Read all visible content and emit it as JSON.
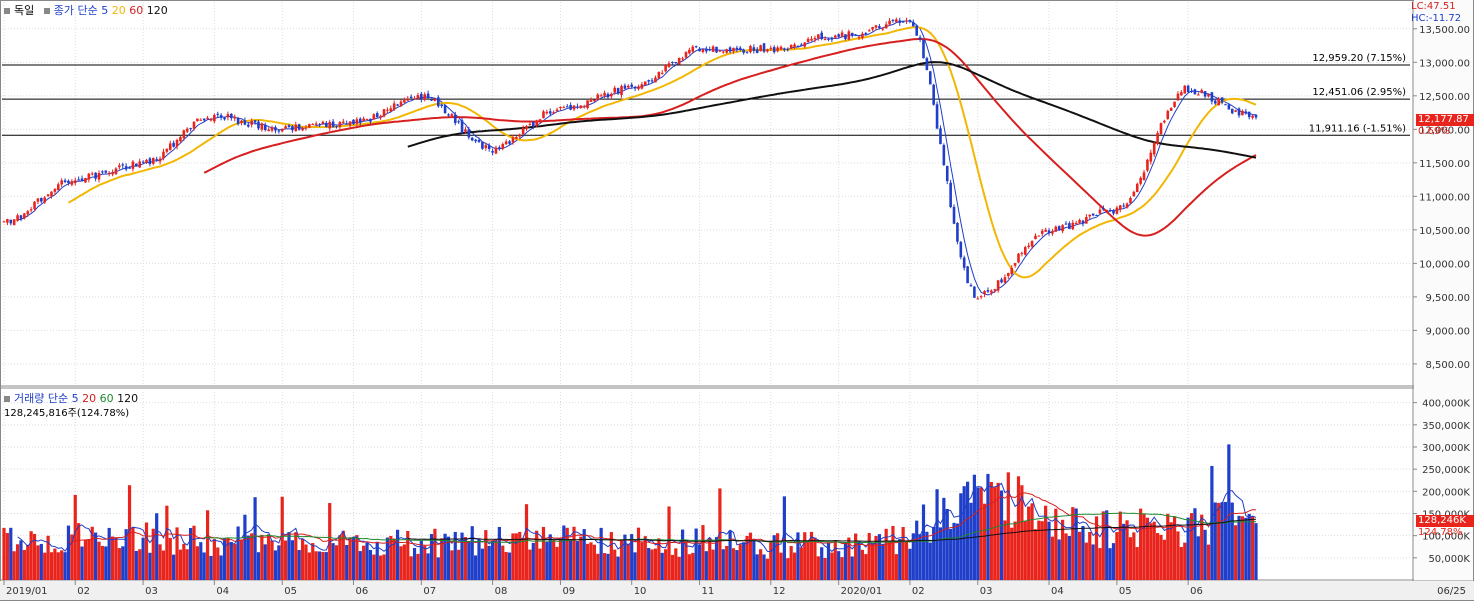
{
  "header": {
    "index_name": "독일",
    "close_label": "종가",
    "sma_label": "단순",
    "ma5": "5",
    "ma20": "20",
    "ma60": "60",
    "ma120": "120",
    "lc": "LC:47.51",
    "hc": "HC:-11.72"
  },
  "volume_header": {
    "title": "거래량",
    "sma_label": "단순",
    "ma5": "5",
    "ma20": "20",
    "ma60": "60",
    "ma120": "120",
    "value": "128,245,816주(124.78%)"
  },
  "colors": {
    "up": "#e8241d",
    "down": "#1f3ec9",
    "ma5": "#1f3ec9",
    "ma20": "#f2b705",
    "ma60": "#d71f1f",
    "ma120": "#111111",
    "vol_ma5": "#1f3ec9",
    "vol_ma20": "#d71f1f",
    "vol_ma60": "#1e8a2e",
    "vol_ma120": "#111111"
  },
  "price_axis_labels": [
    "13,500.00",
    "13,000.00",
    "12,500.00",
    "12,000.00",
    "11,500.00",
    "11,000.00",
    "10,500.00",
    "10,000.00",
    "9,500.00",
    "9,000.00",
    "8,500.00"
  ],
  "volume_axis_labels": [
    "400,000K",
    "350,000K",
    "300,000K",
    "250,000K",
    "200,000K",
    "150,000K",
    "100,000K",
    "50,000K"
  ],
  "x_labels": [
    "2019/01",
    "02",
    "03",
    "04",
    "05",
    "06",
    "07",
    "08",
    "09",
    "10",
    "11",
    "12",
    "2020/01",
    "02",
    "03",
    "04",
    "05",
    "06"
  ],
  "last_date_label": "06/25",
  "current_price_badge": "12,177.87",
  "current_price_pct": "0.69%",
  "current_volume_badge": "128,246K",
  "current_volume_pct": "124.78%",
  "levels": [
    {
      "label": "12,959.20 (7.15%)",
      "value": 12959.2
    },
    {
      "label": "12,451.06 (2.95%)",
      "value": 12451.06
    },
    {
      "label": "11,911.16 (-1.51%)",
      "value": 11911.16
    }
  ],
  "chart_data": {
    "type": "candlestick",
    "title": "독일",
    "price_range": [
      8200,
      13900
    ],
    "volume_range": [
      0,
      415000
    ],
    "month_anchors": [
      {
        "label": "2019/01",
        "close": 10600,
        "volume": 90000
      },
      {
        "label": "02",
        "close": 11250,
        "volume": 95000
      },
      {
        "label": "03",
        "close": 11500,
        "volume": 100000
      },
      {
        "label": "04",
        "close": 12200,
        "volume": 85000
      },
      {
        "label": "05",
        "close": 12000,
        "volume": 90000
      },
      {
        "label": "06",
        "close": 12100,
        "volume": 85000
      },
      {
        "label": "07",
        "close": 12500,
        "volume": 80000
      },
      {
        "label": "08",
        "close": 11700,
        "volume": 95000
      },
      {
        "label": "09",
        "close": 12300,
        "volume": 90000
      },
      {
        "label": "10",
        "close": 12600,
        "volume": 85000
      },
      {
        "label": "11",
        "close": 13200,
        "volume": 85000
      },
      {
        "label": "12",
        "close": 13200,
        "volume": 75000
      },
      {
        "label": "2020/01",
        "close": 13400,
        "volume": 80000
      },
      {
        "label": "02",
        "close": 13600,
        "volume": 95000
      },
      {
        "label": "03",
        "close": 9500,
        "volume": 230000
      },
      {
        "label": "04",
        "close": 10500,
        "volume": 130000
      },
      {
        "label": "05",
        "close": 10800,
        "volume": 110000
      },
      {
        "label": "06",
        "close": 12600,
        "volume": 125000
      },
      {
        "label": "06/25",
        "close": 12177.87,
        "volume": 128246
      }
    ],
    "last": {
      "close": 12177.87,
      "change_pct": 0.69,
      "volume": 128245816,
      "volume_pct": 124.78
    },
    "moving_averages": [
      "5",
      "20",
      "60",
      "120"
    ]
  }
}
